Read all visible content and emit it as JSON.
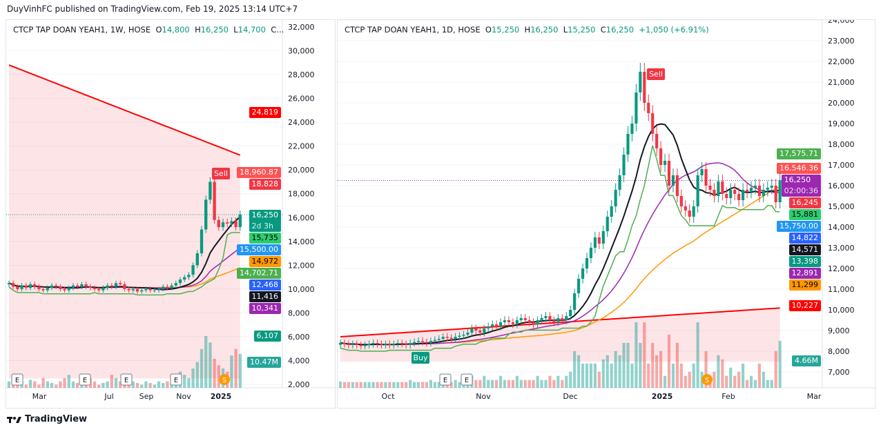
{
  "header": {
    "published": "DuyVinhFC published on TradingView.com, Feb 19, 2025 13:14 UTC+7"
  },
  "footer": {
    "brand": "TradingView",
    "logo_icon": "tradingview-logo-icon"
  },
  "left": {
    "legend": {
      "symbol": "CTCP TAP DOAN YEAH1, 1W, HOSE",
      "o_label": "O",
      "o": "14,800",
      "h_label": "H",
      "h": "16,250",
      "l_label": "L",
      "l": "14,700",
      "rest": "C..."
    },
    "badge_top": {
      "text": "24,819",
      "color": "#ff0000"
    },
    "badges_a": [
      {
        "text": "18,960.87",
        "color": "#ff5252",
        "fg": "#fff"
      },
      {
        "text": "18,828",
        "color": "#f23645",
        "fg": "#fff"
      }
    ],
    "badges_b": [
      {
        "text": "16,250",
        "sub": "2d 3h",
        "color": "#089981",
        "fg": "#fff"
      },
      {
        "text": "15,735",
        "color": "#2ecc71",
        "fg": "#000"
      },
      {
        "text": "15,500.00",
        "color": "#2196f3",
        "fg": "#fff"
      },
      {
        "text": "14,972",
        "color": "#ff9800",
        "fg": "#000"
      },
      {
        "text": "14,702.71",
        "color": "#4caf50",
        "fg": "#fff"
      },
      {
        "text": "12,468",
        "color": "#2962ff",
        "fg": "#fff"
      },
      {
        "text": "11,416",
        "color": "#131722",
        "fg": "#fff"
      },
      {
        "text": "10,341",
        "color": "#9c27b0",
        "fg": "#fff"
      }
    ],
    "badge_low": {
      "text": "6,107",
      "color": "#089981"
    },
    "badge_vol": {
      "text": "10.47M",
      "color": "#26a69a"
    },
    "sell_label": "Sell",
    "earnings_label": "E",
    "split_label": "S"
  },
  "right": {
    "legend": {
      "symbol": "CTCP TAP DOAN YEAH1, 1D, HOSE",
      "o_label": "O",
      "o": "15,250",
      "h_label": "H",
      "h": "16,250",
      "l_label": "L",
      "l": "15,250",
      "c_label": "C",
      "c": "16,250",
      "chg": "+1,050 (+6.91%)"
    },
    "badge_top": {
      "text": "17,575.71",
      "color": "#4caf50"
    },
    "badges_a": [
      {
        "text": "16,546.36",
        "color": "#ff5252",
        "fg": "#fff"
      },
      {
        "text": "16,250",
        "sub": "02:00:36",
        "color": "#9c27b0",
        "fg": "#fff"
      },
      {
        "text": "16,245",
        "color": "#f23645",
        "fg": "#fff"
      },
      {
        "text": "15,881",
        "color": "#2ecc71",
        "fg": "#000"
      },
      {
        "text": "15,750.00",
        "color": "#2196f3",
        "fg": "#fff"
      },
      {
        "text": "14,822",
        "color": "#2962ff",
        "fg": "#fff"
      },
      {
        "text": "14,571",
        "color": "#131722",
        "fg": "#fff"
      },
      {
        "text": "13,398",
        "color": "#089981",
        "fg": "#fff"
      },
      {
        "text": "12,891",
        "color": "#9c27b0",
        "fg": "#fff"
      },
      {
        "text": "11,299",
        "color": "#ff9800",
        "fg": "#000"
      }
    ],
    "badge_red": {
      "text": "10,227",
      "color": "#ff0000"
    },
    "badge_vol": {
      "text": "4.66M",
      "color": "#26a69a"
    },
    "sell_label": "Sell",
    "buy_label": "Buy",
    "earnings_label": "E",
    "split_label": "S"
  },
  "chart_data": [
    {
      "type": "candlestick",
      "interval": "1W",
      "ylim": [
        2000,
        32000
      ],
      "yticks": [
        2000,
        4000,
        6000,
        8000,
        10000,
        12000,
        14000,
        16000,
        18000,
        20000,
        22000,
        24000,
        26000,
        28000,
        30000,
        32000
      ],
      "xticks": [
        "Mar",
        "Jul",
        "Sep",
        "Nov",
        "2025"
      ],
      "closes": [
        10500,
        10200,
        10000,
        10300,
        10100,
        10400,
        10200,
        10000,
        9900,
        10100,
        10300,
        10200,
        10000,
        9900,
        10100,
        10300,
        10200,
        10400,
        10200,
        10100,
        10000,
        9900,
        10100,
        10300,
        10200,
        10500,
        10400,
        10000,
        9900,
        10000,
        9800,
        9900,
        10000,
        9900,
        9900,
        10000,
        10200,
        10100,
        10300,
        10500,
        10800,
        11000,
        11200,
        12000,
        13000,
        15000,
        17500,
        19000,
        15800,
        15200,
        15600,
        15500,
        15700,
        15200,
        16250
      ],
      "volumes_m": [
        2,
        3,
        1.5,
        2,
        1,
        2.5,
        2,
        1,
        3,
        2,
        1.5,
        1,
        2,
        3,
        4,
        2,
        1.5,
        1,
        2,
        3,
        2,
        1,
        1.5,
        2,
        4,
        3,
        2,
        1.5,
        1,
        2,
        1.5,
        1,
        2,
        1.5,
        1,
        2,
        1.5,
        2,
        3,
        2,
        5,
        4,
        3,
        6,
        8,
        12,
        16,
        14,
        9,
        7,
        6,
        5,
        10,
        12,
        10.47
      ],
      "last_price": 16250
    },
    {
      "type": "candlestick",
      "interval": "1D",
      "ylim": [
        7000,
        24000
      ],
      "yticks": [
        7000,
        8000,
        9000,
        10000,
        11000,
        12000,
        13000,
        14000,
        15000,
        16000,
        17000,
        18000,
        19000,
        20000,
        21000,
        22000,
        23000,
        24000
      ],
      "xticks": [
        "Oct",
        "Nov",
        "Dec",
        "2025",
        "Feb",
        "Mar"
      ],
      "closes": [
        8400,
        8350,
        8300,
        8350,
        8300,
        8250,
        8300,
        8350,
        8400,
        8350,
        8300,
        8350,
        8300,
        8350,
        8400,
        8350,
        8300,
        8400,
        8450,
        8500,
        8450,
        8400,
        8500,
        8550,
        8600,
        8700,
        8650,
        8600,
        8700,
        8750,
        8800,
        8900,
        9100,
        9000,
        8900,
        9100,
        9200,
        9300,
        9200,
        9400,
        9500,
        9400,
        9300,
        9500,
        9600,
        9500,
        9400,
        9300,
        9500,
        9600,
        9700,
        9500,
        9400,
        9600,
        9500,
        9700,
        10000,
        10800,
        11500,
        12000,
        12500,
        13000,
        13500,
        13200,
        13800,
        14500,
        15000,
        15800,
        16500,
        17500,
        18500,
        19000,
        20500,
        21500,
        20000,
        19500,
        18500,
        17800,
        17000,
        17200,
        16000,
        16500,
        15500,
        15000,
        14800,
        14500,
        15000,
        16500,
        16800,
        16000,
        15800,
        15500,
        16200,
        15600,
        15400,
        15800,
        15600,
        15300,
        15800,
        15700,
        15900,
        16000,
        15500,
        15800,
        15900,
        16000,
        15200,
        16250
      ],
      "last_price": 16250,
      "signals": [
        "Buy",
        "Sell"
      ]
    }
  ]
}
